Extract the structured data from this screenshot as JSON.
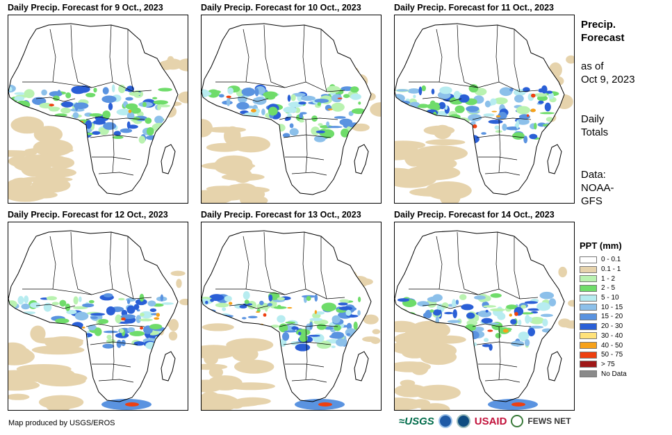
{
  "panels": [
    {
      "title": "Daily Precip. Forecast for 9 Oct., 2023"
    },
    {
      "title": "Daily Precip. Forecast for 10 Oct., 2023"
    },
    {
      "title": "Daily Precip. Forecast for 11 Oct., 2023"
    },
    {
      "title": "Daily Precip. Forecast for 12 Oct., 2023"
    },
    {
      "title": "Daily Precip. Forecast for 13 Oct., 2023"
    },
    {
      "title": "Daily Precip. Forecast for 14 Oct., 2023"
    }
  ],
  "side": {
    "heading_line1": "Precip.",
    "heading_line2": "Forecast",
    "asof_line1": "as of",
    "asof_line2": "Oct 9, 2023",
    "totals_line1": "Daily",
    "totals_line2": "Totals",
    "data_line1": "Data:",
    "data_line2": "NOAA-",
    "data_line3": "GFS"
  },
  "legend": {
    "title": "PPT (mm)",
    "items": [
      {
        "label": "0 - 0.1",
        "color": "#ffffff"
      },
      {
        "label": "0.1 - 1",
        "color": "#e6d3ac"
      },
      {
        "label": "1 - 2",
        "color": "#b9f2b0"
      },
      {
        "label": "2 - 5",
        "color": "#6fdc6a"
      },
      {
        "label": "5 - 10",
        "color": "#b7ecf0"
      },
      {
        "label": "10 - 15",
        "color": "#8cc0ea"
      },
      {
        "label": "15 - 20",
        "color": "#5a93e0"
      },
      {
        "label": "20 - 30",
        "color": "#2a5fd6"
      },
      {
        "label": "30 - 40",
        "color": "#ffe27a"
      },
      {
        "label": "40 - 50",
        "color": "#f6a11a"
      },
      {
        "label": "50 - 75",
        "color": "#ee4010"
      },
      {
        "label": "> 75",
        "color": "#a01818"
      },
      {
        "label": "No Data",
        "color": "#8a8a8a"
      }
    ]
  },
  "credit": "Map produced by USGS/EROS",
  "logos": {
    "usgs": "≈USGS",
    "usaid": "USAID",
    "fews": "FEWS NET"
  }
}
